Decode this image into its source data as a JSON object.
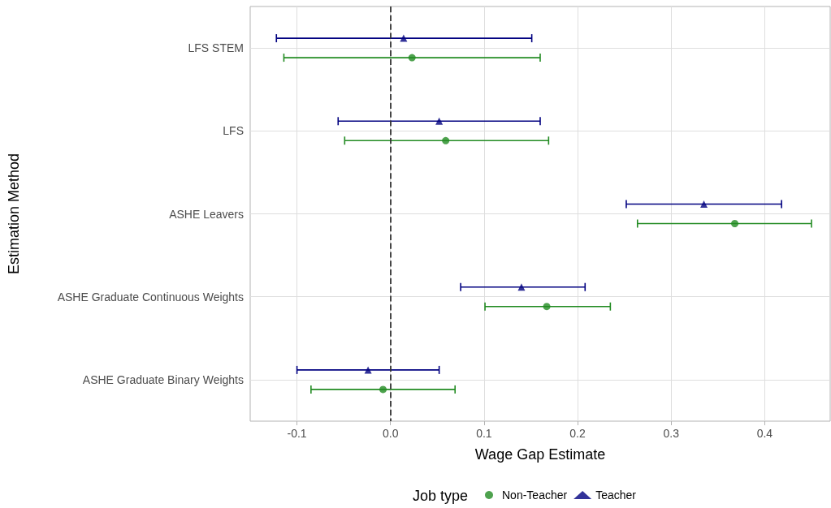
{
  "chart_data": {
    "type": "scatter",
    "orientation": "horizontal",
    "xlabel": "Wage Gap Estimate",
    "ylabel": "Estimation Method",
    "legend_title": "Job type",
    "legend": "bottom",
    "grid": true,
    "categories": [
      "LFS STEM",
      "LFS",
      "ASHE Leavers",
      "ASHE Graduate Continuous Weights",
      "ASHE Graduate Binary Weights"
    ],
    "xlim": [
      -0.15,
      0.47
    ],
    "xticks": [
      -0.1,
      {
        "value": 0,
        "label": "0.0"
      },
      0.1,
      0.2,
      0.3,
      0.4
    ],
    "ref_lines": [
      {
        "axis": "x",
        "value": 0,
        "color": "#333333",
        "line_style": "dashed"
      }
    ],
    "series": [
      {
        "name": "Non-Teacher",
        "color": "#228b22",
        "marker": "circle",
        "values": [
          0.023,
          0.059,
          0.368,
          0.167,
          -0.008
        ],
        "errors": [
          [
            -0.114,
            0.16
          ],
          [
            -0.049,
            0.169
          ],
          [
            0.264,
            0.45
          ],
          [
            0.101,
            0.235
          ],
          [
            -0.085,
            0.069
          ]
        ]
      },
      {
        "name": "Teacher",
        "color": "#000080",
        "marker": "triangle",
        "values": [
          0.014,
          0.052,
          0.335,
          0.14,
          -0.024
        ],
        "errors": [
          [
            -0.122,
            0.151
          ],
          [
            -0.056,
            0.16
          ],
          [
            0.252,
            0.418
          ],
          [
            0.075,
            0.208
          ],
          [
            -0.1,
            0.052
          ]
        ]
      }
    ]
  }
}
